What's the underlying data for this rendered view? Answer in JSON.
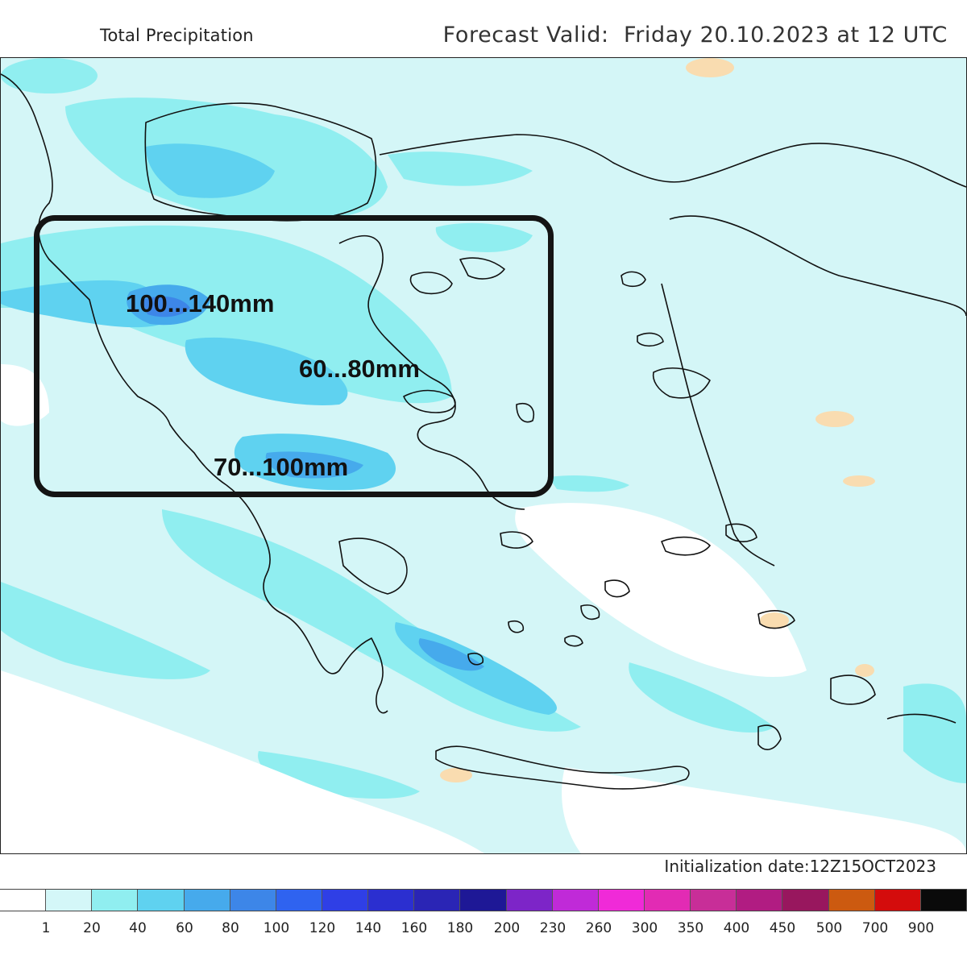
{
  "header": {
    "title": "Total Precipitation",
    "forecast_valid": "Forecast Valid:  Friday 20.10.2023 at 12 UTC"
  },
  "footer": {
    "initialization": "Initialization date:12Z15OCT2023"
  },
  "map": {
    "annotations": [
      {
        "text": "100...140mm"
      },
      {
        "text": "60...80mm"
      },
      {
        "text": "70...100mm"
      }
    ],
    "colors": {
      "sea_background": "#d4f6f7",
      "land_outline": "#111111",
      "highlight_box": "#141414"
    }
  },
  "legend": {
    "unit_hint": "mm",
    "colors": [
      "#ffffff",
      "#d4f7f8",
      "#90eef0",
      "#5fd2f0",
      "#46aaec",
      "#3d86e8",
      "#2f63f0",
      "#2f3fe6",
      "#2b2fd0",
      "#2a25b5",
      "#1e1896",
      "#7d25c8",
      "#c02ad8",
      "#f02ad8",
      "#e22bb4",
      "#c82e98",
      "#b11c82",
      "#98175e",
      "#cc5a10",
      "#d40c0c",
      "#0a0a0a"
    ],
    "ticks": [
      "1",
      "20",
      "40",
      "60",
      "80",
      "100",
      "120",
      "140",
      "160",
      "180",
      "200",
      "230",
      "260",
      "300",
      "350",
      "400",
      "450",
      "500",
      "700",
      "900"
    ]
  }
}
